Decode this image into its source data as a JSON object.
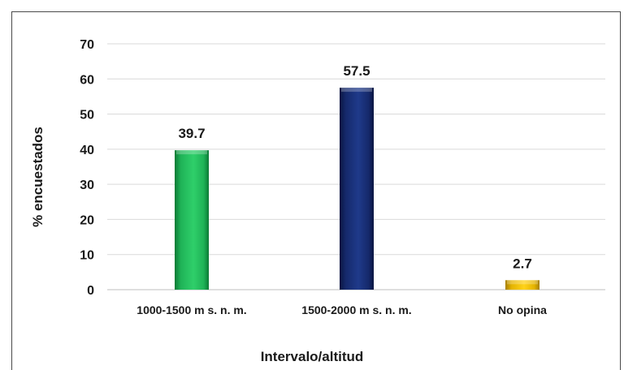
{
  "chart_data": {
    "type": "bar",
    "categories": [
      "1000-1500 m s. n. m.",
      "1500-2000 m s. n. m.",
      "No opina"
    ],
    "values": [
      39.7,
      57.5,
      2.7
    ],
    "data_labels": [
      "39.7",
      "57.5",
      "2.7"
    ],
    "colors": [
      "#1fb357",
      "#15296b",
      "#e4b300"
    ],
    "title": "",
    "xlabel": "Intervalo/altitud",
    "ylabel": "% encuestados",
    "ylim": [
      0,
      70
    ],
    "yticks": [
      0,
      10,
      20,
      30,
      40,
      50,
      60,
      70
    ],
    "grid": true,
    "legend": "none"
  }
}
